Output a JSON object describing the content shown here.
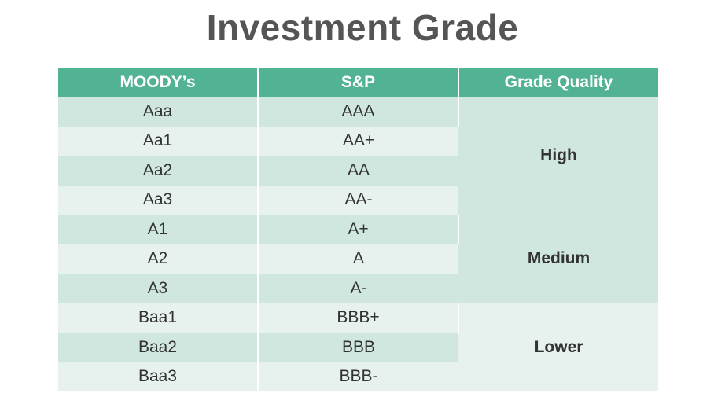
{
  "title": "Investment Grade",
  "table": {
    "headers": [
      "MOODY’s",
      "S&P",
      "Grade Quality"
    ],
    "rows": [
      {
        "moodys": "Aaa",
        "sp": "AAA"
      },
      {
        "moodys": "Aa1",
        "sp": "AA+"
      },
      {
        "moodys": "Aa2",
        "sp": "AA"
      },
      {
        "moodys": "Aa3",
        "sp": "AA-"
      },
      {
        "moodys": "A1",
        "sp": "A+"
      },
      {
        "moodys": "A2",
        "sp": "A"
      },
      {
        "moodys": "A3",
        "sp": "A-"
      },
      {
        "moodys": "Baa1",
        "sp": "BBB+"
      },
      {
        "moodys": "Baa2",
        "sp": "BBB"
      },
      {
        "moodys": "Baa3",
        "sp": "BBB-"
      }
    ],
    "qualities": [
      "High",
      "Medium",
      "Lower"
    ]
  },
  "colors": {
    "header_bg": "#52b294",
    "row_dark": "#d0e7df",
    "row_light": "#e7f2ee",
    "title_text": "#555555"
  }
}
